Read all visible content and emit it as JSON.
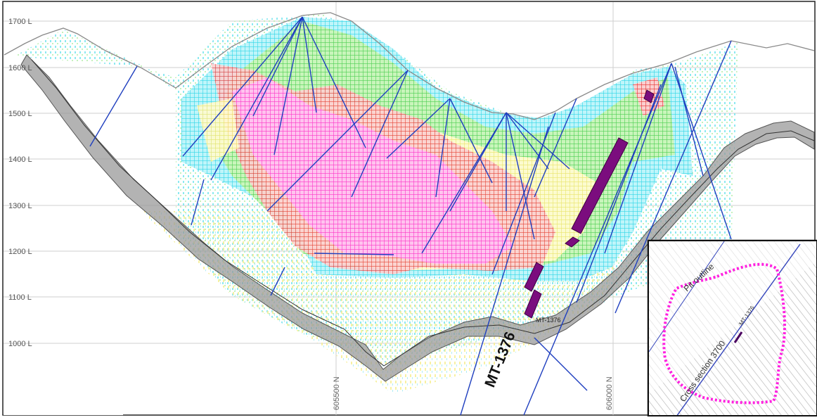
{
  "elevation_labels": [
    "1700 L",
    "1600 L",
    "1500 L",
    "1400 L",
    "1300 L",
    "1200 L",
    "1100 L",
    "1000 L"
  ],
  "northing_labels": [
    "605500 N",
    "606000 N"
  ],
  "drillhole_label": "MT-1376",
  "drillhole_small_label": "MT-1376",
  "inset": {
    "pit_label": "Pit outline",
    "section_label": "Cross section 3700",
    "hole_label": "MT-1376"
  },
  "colors": {
    "grid": "#c8c8c8",
    "block_cyan": "#4fe3f0",
    "block_green": "#6fe06a",
    "block_yellow": "#fdf58a",
    "block_red": "#ee3a3a",
    "block_magenta": "#ff3fd2",
    "drillhole": "#1f3fbf",
    "intercept": "#7b0d7e",
    "pit_shell": "#8a8a8a",
    "inset_pit": "#ff20e0"
  }
}
